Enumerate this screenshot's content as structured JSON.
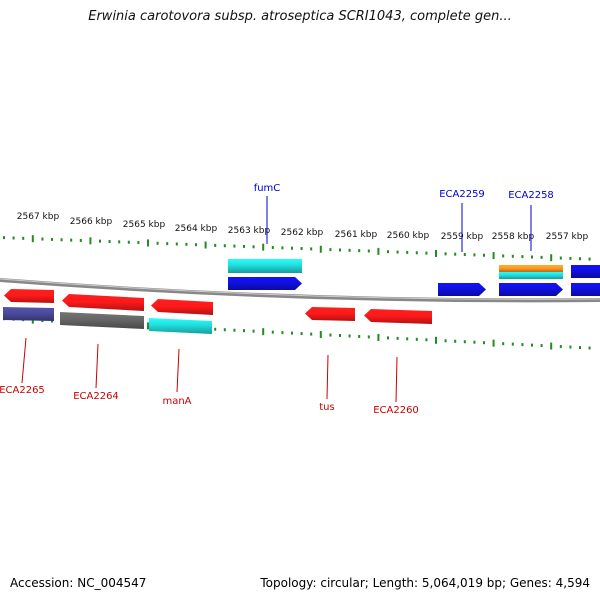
{
  "title": "Erwinia carotovora subsp. atroseptica SCRI1043, complete gen...",
  "footer": {
    "accession": "Accession: NC_004547",
    "summary": "Topology: circular; Length: 5,064,019 bp; Genes: 4,594"
  },
  "colors": {
    "backbone": "#888888",
    "tick": "#228b22",
    "forward_label": "#0000cc",
    "reverse_label": "#cc0000",
    "red": "#ff1a1a",
    "blue": "#1010e0",
    "cyan": "#22dddd",
    "gray": "#666666",
    "navy": "#4a4a99",
    "orange": "#ff9922"
  },
  "scale": {
    "labels": [
      "2567 kbp",
      "2566 kbp",
      "2565 kbp",
      "2564 kbp",
      "2563 kbp",
      "2562 kbp",
      "2561 kbp",
      "2560 kbp",
      "2559 kbp",
      "2558 kbp",
      "2557 kbp"
    ]
  },
  "features": [
    {
      "id": "fumC",
      "label": "fumC",
      "strand": "forward",
      "color": "cyan"
    },
    {
      "id": "fumC_gene",
      "label": "",
      "strand": "forward",
      "color": "blue"
    },
    {
      "id": "ECA2259",
      "label": "ECA2259",
      "strand": "forward",
      "color": "blue"
    },
    {
      "id": "ECA2258_orange",
      "label": "ECA2258",
      "strand": "forward",
      "color": "orange"
    },
    {
      "id": "ECA2258_cyan",
      "label": "",
      "strand": "forward",
      "color": "cyan"
    },
    {
      "id": "ECA2258_gene",
      "label": "",
      "strand": "forward",
      "color": "blue"
    },
    {
      "id": "edge_top",
      "label": "",
      "strand": "forward",
      "color": "blue"
    },
    {
      "id": "edge_mid",
      "label": "",
      "strand": "forward",
      "color": "blue"
    },
    {
      "id": "ECA2265_gene",
      "label": "ECA2265",
      "strand": "reverse",
      "color": "red"
    },
    {
      "id": "ECA2265_cds",
      "label": "",
      "strand": "reverse",
      "color": "navy"
    },
    {
      "id": "ECA2264_gene",
      "label": "ECA2264",
      "strand": "reverse",
      "color": "red"
    },
    {
      "id": "ECA2264_cds",
      "label": "",
      "strand": "reverse",
      "color": "gray"
    },
    {
      "id": "manA_gene",
      "label": "manA",
      "strand": "reverse",
      "color": "red"
    },
    {
      "id": "manA_cds",
      "label": "",
      "strand": "reverse",
      "color": "cyan"
    },
    {
      "id": "tus",
      "label": "tus",
      "strand": "reverse",
      "color": "red"
    },
    {
      "id": "ECA2260",
      "label": "ECA2260",
      "strand": "reverse",
      "color": "red"
    }
  ]
}
